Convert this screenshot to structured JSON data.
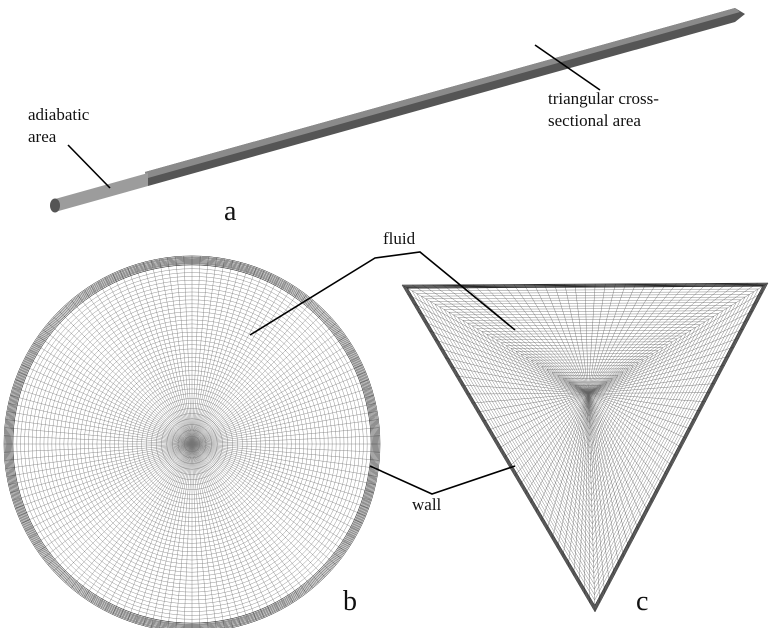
{
  "panel_a": {
    "label": "a",
    "annotations": [
      [
        "adiabatic",
        "area"
      ],
      [
        "triangular cross-",
        "sectional area"
      ]
    ]
  },
  "panel_b": {
    "label": "b"
  },
  "panel_c": {
    "label": "c"
  },
  "shared_annotations": {
    "fluid": "fluid",
    "wall": "wall"
  }
}
